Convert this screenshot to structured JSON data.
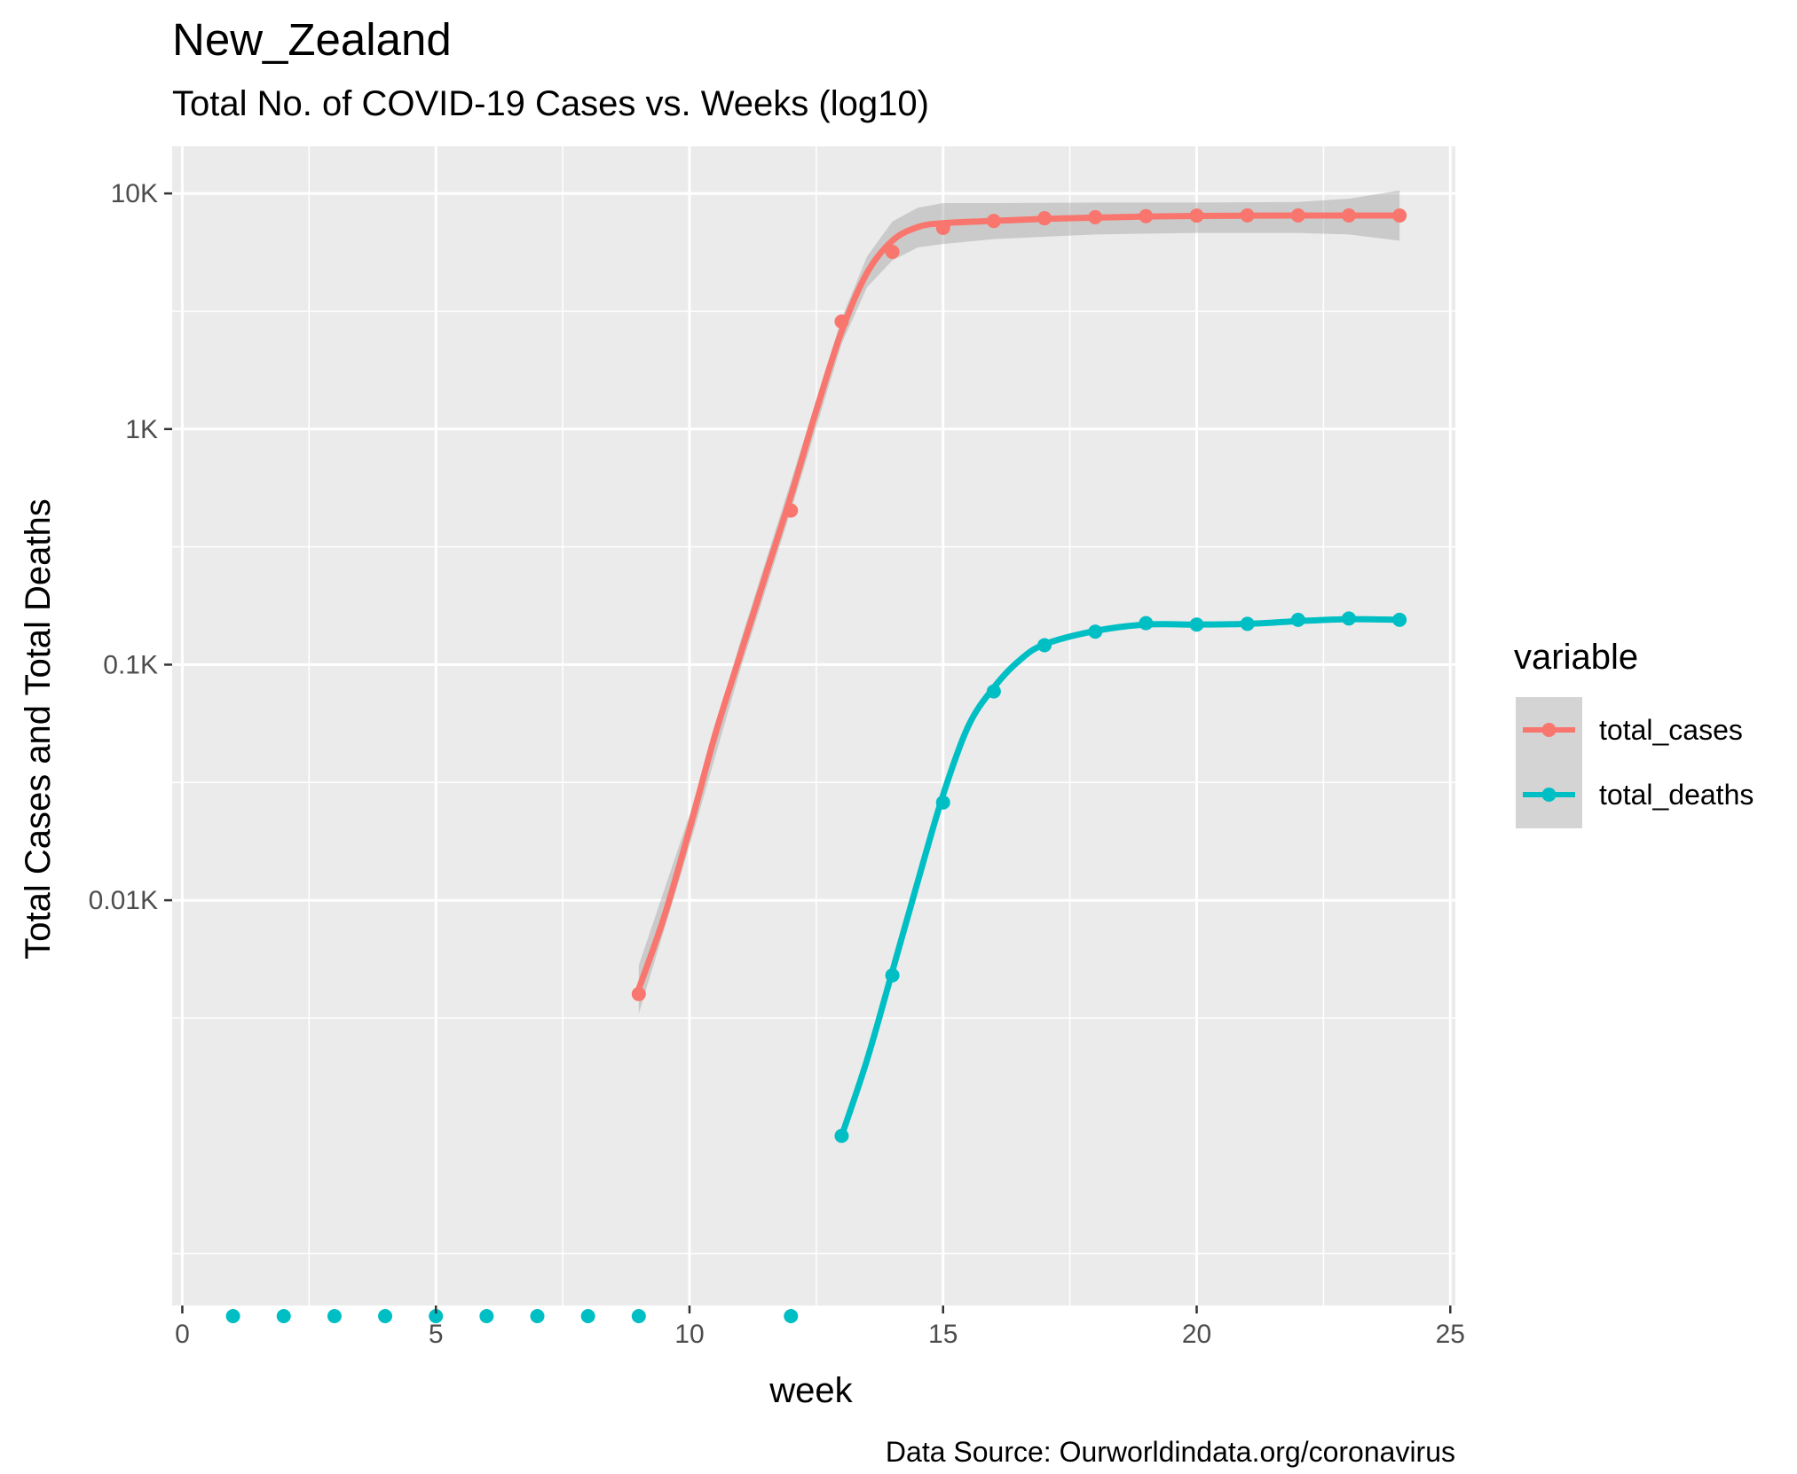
{
  "chart_data": {
    "type": "line",
    "title": "New_Zealand",
    "subtitle": "Total No. of COVID-19 Cases vs. Weeks (log10)",
    "xlabel": "week",
    "ylabel": "Total Cases and Total Deaths",
    "caption": "Data Source: Ourworldindata.org/coronavirus",
    "xlim": [
      -0.2,
      25.1
    ],
    "ylim_log10": [
      -0.72,
      4.2
    ],
    "y_scale": "log10",
    "grid": true,
    "x_ticks": [
      {
        "value": 0,
        "label": "0"
      },
      {
        "value": 5,
        "label": "5"
      },
      {
        "value": 10,
        "label": "10"
      },
      {
        "value": 15,
        "label": "15"
      },
      {
        "value": 20,
        "label": "20"
      },
      {
        "value": 25,
        "label": "25"
      }
    ],
    "y_ticks": [
      {
        "value": 10,
        "label": "0.01K"
      },
      {
        "value": 100,
        "label": "0.1K"
      },
      {
        "value": 1000,
        "label": "1K"
      },
      {
        "value": 10000,
        "label": "10K"
      }
    ],
    "legend": {
      "title": "variable",
      "position": "right"
    },
    "series": [
      {
        "name": "total_cases",
        "color": "#F8766D",
        "points": [
          {
            "x": 9,
            "y": 4
          },
          {
            "x": 12,
            "y": 451
          },
          {
            "x": 13,
            "y": 2860
          },
          {
            "x": 14,
            "y": 5650
          },
          {
            "x": 15,
            "y": 7140
          },
          {
            "x": 16,
            "y": 7640
          },
          {
            "x": 17,
            "y": 7850
          },
          {
            "x": 18,
            "y": 7930
          },
          {
            "x": 19,
            "y": 8010
          },
          {
            "x": 20,
            "y": 8050
          },
          {
            "x": 21,
            "y": 8070
          },
          {
            "x": 22,
            "y": 8070
          },
          {
            "x": 23,
            "y": 8070
          },
          {
            "x": 24,
            "y": 8060
          }
        ],
        "smooth": [
          {
            "x": 9,
            "y": 4.2
          },
          {
            "x": 9.5,
            "y": 8.5
          },
          {
            "x": 10,
            "y": 20
          },
          {
            "x": 10.5,
            "y": 50
          },
          {
            "x": 11,
            "y": 110
          },
          {
            "x": 11.5,
            "y": 240
          },
          {
            "x": 12,
            "y": 520
          },
          {
            "x": 12.5,
            "y": 1200
          },
          {
            "x": 13,
            "y": 2600
          },
          {
            "x": 13.5,
            "y": 4600
          },
          {
            "x": 14,
            "y": 6300
          },
          {
            "x": 14.5,
            "y": 7200
          },
          {
            "x": 15,
            "y": 7480
          },
          {
            "x": 16,
            "y": 7650
          },
          {
            "x": 17,
            "y": 7800
          },
          {
            "x": 18,
            "y": 7900
          },
          {
            "x": 19,
            "y": 7980
          },
          {
            "x": 20,
            "y": 8030
          },
          {
            "x": 21,
            "y": 8050
          },
          {
            "x": 22,
            "y": 8060
          },
          {
            "x": 23,
            "y": 8060
          },
          {
            "x": 24,
            "y": 8060
          }
        ],
        "band": [
          {
            "x": 9,
            "lo": 3.3,
            "hi": 5.3
          },
          {
            "x": 10,
            "lo": 17,
            "hi": 23
          },
          {
            "x": 11,
            "lo": 95,
            "hi": 125
          },
          {
            "x": 12,
            "lo": 450,
            "hi": 600
          },
          {
            "x": 13,
            "lo": 2300,
            "hi": 2950
          },
          {
            "x": 13.5,
            "lo": 4000,
            "hi": 5400
          },
          {
            "x": 14,
            "lo": 5200,
            "hi": 7600
          },
          {
            "x": 14.5,
            "lo": 5900,
            "hi": 8700
          },
          {
            "x": 15,
            "lo": 6100,
            "hi": 9100
          },
          {
            "x": 16,
            "lo": 6400,
            "hi": 9100
          },
          {
            "x": 18,
            "lo": 6700,
            "hi": 9150
          },
          {
            "x": 20,
            "lo": 6800,
            "hi": 9150
          },
          {
            "x": 22,
            "lo": 6800,
            "hi": 9200
          },
          {
            "x": 23,
            "lo": 6700,
            "hi": 9500
          },
          {
            "x": 24,
            "lo": 6300,
            "hi": 10300
          }
        ]
      },
      {
        "name": "total_deaths",
        "color": "#00BFC4",
        "points": [
          {
            "x": 13,
            "y": 1
          },
          {
            "x": 14,
            "y": 4.8
          },
          {
            "x": 15,
            "y": 26
          },
          {
            "x": 16,
            "y": 77
          },
          {
            "x": 17,
            "y": 121
          },
          {
            "x": 18,
            "y": 138
          },
          {
            "x": 19,
            "y": 150
          },
          {
            "x": 20,
            "y": 148
          },
          {
            "x": 21,
            "y": 149
          },
          {
            "x": 22,
            "y": 155
          },
          {
            "x": 23,
            "y": 157
          },
          {
            "x": 24,
            "y": 155
          }
        ],
        "smooth": [
          {
            "x": 13,
            "y": 1
          },
          {
            "x": 13.5,
            "y": 2.1
          },
          {
            "x": 14,
            "y": 5
          },
          {
            "x": 14.5,
            "y": 12
          },
          {
            "x": 15,
            "y": 28
          },
          {
            "x": 15.5,
            "y": 55
          },
          {
            "x": 16,
            "y": 80
          },
          {
            "x": 16.5,
            "y": 104
          },
          {
            "x": 17,
            "y": 122
          },
          {
            "x": 18,
            "y": 139
          },
          {
            "x": 19,
            "y": 148
          },
          {
            "x": 20,
            "y": 148
          },
          {
            "x": 21,
            "y": 149
          },
          {
            "x": 22,
            "y": 153
          },
          {
            "x": 23,
            "y": 156
          },
          {
            "x": 24,
            "y": 155
          }
        ],
        "baseline_points": [
          1,
          2,
          3,
          4,
          5,
          6,
          7,
          8,
          9,
          12
        ]
      }
    ]
  }
}
